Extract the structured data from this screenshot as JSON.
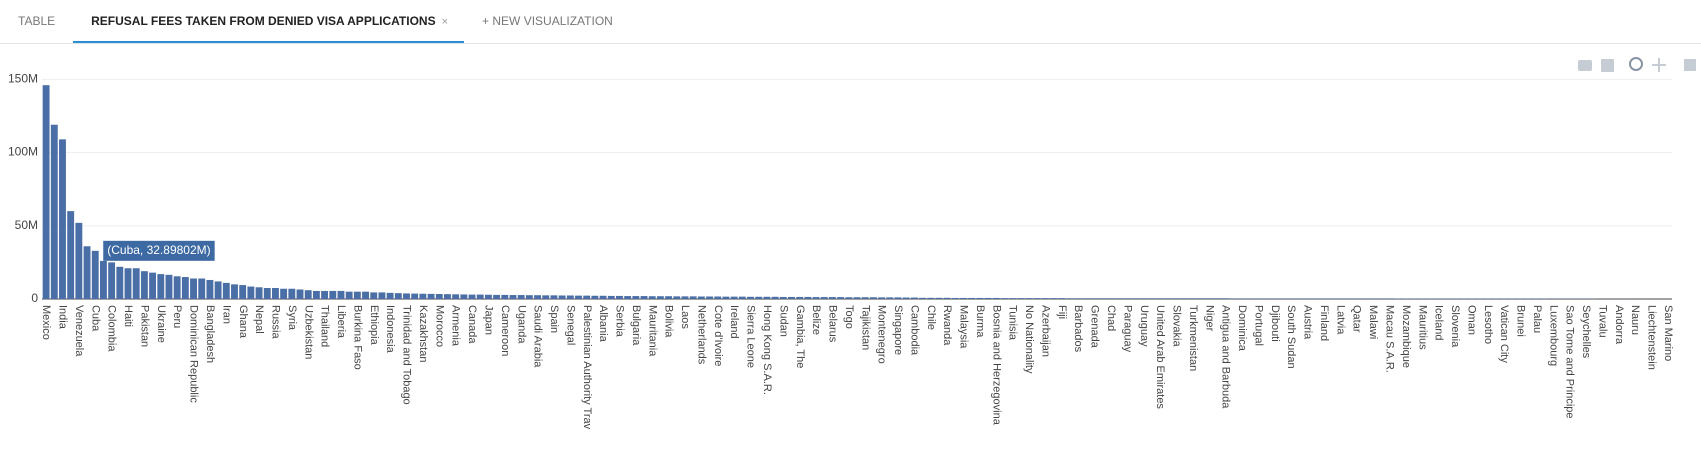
{
  "tabs": [
    {
      "label": "TABLE"
    },
    {
      "label": "REFUSAL FEES TAKEN FROM DENIED VISA APPLICATIONS",
      "close": "×"
    },
    {
      "label": "+ NEW VISUALIZATION"
    }
  ],
  "chart_data": {
    "type": "bar",
    "color": "#4a6ea6",
    "grid": true,
    "tooltip": "(Cuba, 32.89802M)",
    "ylim": [
      0,
      155
    ],
    "yticks": [
      0,
      {
        "value": 50,
        "label": "50M"
      },
      {
        "value": 100,
        "label": "100M"
      },
      {
        "value": 150,
        "label": "150M"
      }
    ],
    "categories": [
      "Mexico",
      null,
      "India",
      null,
      "Venezuela",
      null,
      "Cuba",
      null,
      "Colombia",
      null,
      "Haiti",
      null,
      "Pakistan",
      null,
      "Ukraine",
      null,
      "Peru",
      null,
      "Dominican Republic",
      null,
      "Bangladesh",
      null,
      "Iran",
      null,
      "Ghana",
      null,
      "Nepal",
      null,
      "Russia",
      null,
      "Syria",
      null,
      "Uzbekistan",
      null,
      "Thailand",
      null,
      "Liberia",
      null,
      "Burkina Faso",
      null,
      "Ethiopia",
      null,
      "Indonesia",
      null,
      "Trinidad and Tobago",
      null,
      "Kazakhstan",
      null,
      "Morocco",
      null,
      "Armenia",
      null,
      "Canada",
      null,
      "Japan",
      null,
      "Cameroon",
      null,
      "Uganda",
      null,
      "Saudi Arabia",
      null,
      "Spain",
      null,
      "Senegal",
      null,
      "Palestinian Authority Trav",
      null,
      "Albania",
      null,
      "Serbia",
      null,
      "Bulgaria",
      null,
      "Mauritania",
      null,
      "Bolivia",
      null,
      "Laos",
      null,
      "Netherlands",
      null,
      "Cote d'Ivoire",
      null,
      "Ireland",
      null,
      "Sierra Leone",
      null,
      "Hong Kong S.A.R.",
      null,
      "Sudan",
      null,
      "Gambia, The",
      null,
      "Belize",
      null,
      "Belarus",
      null,
      "Togo",
      null,
      "Tajikistan",
      null,
      "Montenegro",
      null,
      "Singapore",
      null,
      "Cambodia",
      null,
      "Chile",
      null,
      "Rwanda",
      null,
      "Malaysia",
      null,
      "Burma",
      null,
      "Bosnia and Herzegovina",
      null,
      "Tunisia",
      null,
      "No Nationality",
      null,
      "Azerbaijan",
      null,
      "Fiji",
      null,
      "Barbados",
      null,
      "Grenada",
      null,
      "Chad",
      null,
      "Paraguay",
      null,
      "Uruguay",
      null,
      "United Arab Emirates",
      null,
      "Slovakia",
      null,
      "Turkmenistan",
      null,
      "Niger",
      null,
      "Antigua and Barbuda",
      null,
      "Dominica",
      null,
      "Portugal",
      null,
      "Djibouti",
      null,
      "South Sudan",
      null,
      "Austria",
      null,
      "Finland",
      null,
      "Latvia",
      null,
      "Qatar",
      null,
      "Malawi",
      null,
      "Macau S.A.R.",
      null,
      "Mozambique",
      null,
      "Mauritius",
      null,
      "Iceland",
      null,
      "Slovenia",
      null,
      "Oman",
      null,
      "Lesotho",
      null,
      "Vatican City",
      null,
      "Brunei",
      null,
      "Palau",
      null,
      "Luxembourg",
      null,
      "Sao Tome and Principe",
      null,
      "Seychelles",
      null,
      "Tuvalu",
      null,
      "Andorra",
      null,
      "Nauru",
      null,
      "Liechtenstein",
      null,
      "San Marino"
    ],
    "values": [
      146,
      119,
      109,
      60,
      52,
      36,
      32.89802,
      26,
      25,
      22,
      21,
      21,
      19,
      18,
      17,
      16.5,
      15.5,
      15,
      14,
      14,
      13,
      12,
      11,
      10,
      9.5,
      8.5,
      8,
      7.5,
      7.5,
      7,
      7,
      6.5,
      6,
      5.5,
      5.5,
      5.5,
      5.5,
      5,
      5,
      5,
      4.5,
      4.5,
      4.2,
      4,
      3.8,
      3.7,
      3.6,
      3.5,
      3.4,
      3.3,
      3.2,
      3.1,
      3,
      3,
      2.9,
      2.8,
      2.8,
      2.7,
      2.7,
      2.6,
      2.6,
      2.5,
      2.5,
      2.4,
      2.4,
      2.3,
      2.3,
      2.2,
      2.2,
      2.1,
      2.1,
      2,
      2,
      2,
      1.9,
      1.9,
      1.9,
      1.8,
      1.8,
      1.8,
      1.7,
      1.7,
      1.7,
      1.6,
      1.6,
      1.6,
      1.5,
      1.5,
      1.5,
      1.5,
      1.4,
      1.4,
      1.4,
      1.4,
      1.3,
      1.3,
      1.3,
      1.3,
      1.2,
      1.2,
      1.2,
      1.2,
      1.1,
      1.1,
      1.1,
      1,
      1,
      0.8,
      0.8,
      0.8,
      0.8,
      0.7,
      0.7,
      0.7,
      0.7,
      0.7,
      0.7,
      0.6,
      0.6,
      0.6,
      0.6,
      0.6,
      0.6,
      0.6,
      0.6,
      0.5,
      0.5,
      0.5,
      0.5,
      0.5,
      0.5,
      0.5,
      0.5,
      0.5,
      0.5,
      0.5,
      0.5,
      0.5,
      0.5,
      0.5,
      0.5,
      0.5,
      0.5,
      0.5,
      0.5,
      0.4,
      0.4,
      0.4,
      0.4,
      0.4,
      0.4,
      0.4,
      0.4,
      0.4,
      0.4,
      0.4,
      0.4,
      0.4,
      0.4,
      0.4,
      0.4,
      0.4,
      0.4,
      0.4,
      0.4,
      0.3,
      0.3,
      0.3,
      0.3,
      0.3,
      0.3,
      0.3,
      0.3,
      0.3,
      0.3,
      0.3,
      0.3,
      0.3,
      0.3,
      0.3,
      0.3,
      0.3,
      0.3,
      0.3,
      0.2,
      0.2,
      0.2,
      0.2,
      0.2,
      0.2,
      0.1,
      0.1,
      0.1,
      0.1,
      0.05,
      0.05,
      0,
      0,
      0
    ]
  }
}
